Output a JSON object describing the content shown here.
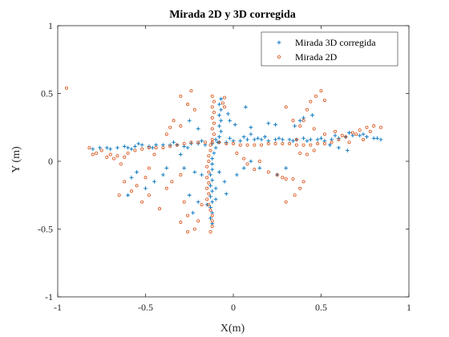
{
  "chart_data": {
    "type": "scatter",
    "title": "Mirada 2D y 3D corregida",
    "xlabel": "X(m)",
    "ylabel": "Y (m)",
    "xlim": [
      -1,
      1
    ],
    "ylim": [
      -1,
      1
    ],
    "x_ticks": [
      -1,
      -0.5,
      0,
      0.5,
      1
    ],
    "x_tick_labels": [
      "-1",
      "-0.5",
      "0",
      "0.5",
      "1"
    ],
    "y_ticks": [
      -1,
      -0.5,
      0,
      0.5,
      1
    ],
    "y_tick_labels": [
      "-1",
      "-0.5",
      "0",
      "0.5",
      "1"
    ],
    "grid": false,
    "legend_position": "top-right",
    "series": [
      {
        "name": "Mirada 3D corregida",
        "marker": "plus",
        "color": "#0072BD",
        "points": [
          [
            -0.8,
            0.09
          ],
          [
            -0.76,
            0.1
          ],
          [
            -0.72,
            0.1
          ],
          [
            -0.7,
            0.09
          ],
          [
            -0.66,
            0.1
          ],
          [
            -0.62,
            0.11
          ],
          [
            -0.6,
            0.1
          ],
          [
            -0.56,
            0.11
          ],
          [
            -0.52,
            0.12
          ],
          [
            -0.48,
            0.11
          ],
          [
            -0.44,
            0.12
          ],
          [
            -0.4,
            0.12
          ],
          [
            -0.36,
            0.12
          ],
          [
            -0.32,
            0.12
          ],
          [
            -0.28,
            0.11
          ],
          [
            -0.24,
            0.13
          ],
          [
            -0.2,
            0.13
          ],
          [
            -0.16,
            0.12
          ],
          [
            -0.12,
            0.13
          ],
          [
            -0.08,
            0.14
          ],
          [
            -0.04,
            0.14
          ],
          [
            0.0,
            0.15
          ],
          [
            0.04,
            0.15
          ],
          [
            0.08,
            0.16
          ],
          [
            0.12,
            0.16
          ],
          [
            0.16,
            0.16
          ],
          [
            0.2,
            0.15
          ],
          [
            0.24,
            0.16
          ],
          [
            0.28,
            0.16
          ],
          [
            0.32,
            0.16
          ],
          [
            0.36,
            0.16
          ],
          [
            0.4,
            0.17
          ],
          [
            0.44,
            0.16
          ],
          [
            0.48,
            0.16
          ],
          [
            0.52,
            0.15
          ],
          [
            0.56,
            0.16
          ],
          [
            0.6,
            0.17
          ],
          [
            0.64,
            0.18
          ],
          [
            0.68,
            0.19
          ],
          [
            0.72,
            0.19
          ],
          [
            0.76,
            0.18
          ],
          [
            0.8,
            0.17
          ],
          [
            0.84,
            0.16
          ],
          [
            -0.58,
            0.09
          ],
          [
            -0.54,
            0.13
          ],
          [
            -0.46,
            0.1
          ],
          [
            -0.34,
            0.14
          ],
          [
            -0.26,
            0.1
          ],
          [
            -0.18,
            0.15
          ],
          [
            -0.1,
            0.16
          ],
          [
            -0.02,
            0.17
          ],
          [
            0.06,
            0.18
          ],
          [
            0.1,
            0.2
          ],
          [
            0.14,
            0.17
          ],
          [
            0.18,
            0.18
          ],
          [
            0.26,
            0.17
          ],
          [
            0.34,
            0.15
          ],
          [
            0.42,
            0.15
          ],
          [
            0.5,
            0.17
          ],
          [
            0.58,
            0.19
          ],
          [
            0.66,
            0.21
          ],
          [
            0.74,
            0.2
          ],
          [
            0.82,
            0.17
          ],
          [
            -0.07,
            0.46
          ],
          [
            -0.08,
            0.42
          ],
          [
            -0.07,
            0.38
          ],
          [
            -0.08,
            0.34
          ],
          [
            -0.07,
            0.3
          ],
          [
            -0.08,
            0.26
          ],
          [
            -0.07,
            0.22
          ],
          [
            -0.08,
            0.18
          ],
          [
            -0.09,
            0.14
          ],
          [
            -0.1,
            0.1
          ],
          [
            -0.11,
            0.06
          ],
          [
            -0.12,
            0.02
          ],
          [
            -0.12,
            -0.02
          ],
          [
            -0.12,
            -0.06
          ],
          [
            -0.13,
            -0.1
          ],
          [
            -0.12,
            -0.14
          ],
          [
            -0.13,
            -0.18
          ],
          [
            -0.12,
            -0.22
          ],
          [
            -0.13,
            -0.26
          ],
          [
            -0.12,
            -0.3
          ],
          [
            -0.13,
            -0.34
          ],
          [
            -0.12,
            -0.38
          ],
          [
            -0.13,
            -0.42
          ],
          [
            -0.12,
            -0.46
          ],
          [
            -0.03,
            0.35
          ],
          [
            -0.02,
            0.3
          ],
          [
            0.01,
            0.27
          ],
          [
            0.07,
            0.4
          ],
          [
            0.1,
            0.25
          ],
          [
            0.2,
            0.28
          ],
          [
            0.24,
            0.27
          ],
          [
            -0.25,
            0.3
          ],
          [
            -0.2,
            0.24
          ],
          [
            -0.3,
            0.05
          ],
          [
            -0.28,
            -0.05
          ],
          [
            -0.22,
            -0.08
          ],
          [
            -0.18,
            -0.1
          ],
          [
            -0.08,
            -0.08
          ],
          [
            -0.05,
            -0.15
          ],
          [
            -0.1,
            -0.2
          ],
          [
            -0.04,
            -0.24
          ],
          [
            -0.1,
            -0.28
          ],
          [
            -0.15,
            -0.32
          ],
          [
            -0.2,
            -0.3
          ],
          [
            -0.23,
            -0.38
          ],
          [
            -0.25,
            -0.25
          ],
          [
            -0.38,
            -0.05
          ],
          [
            -0.4,
            -0.1
          ],
          [
            -0.45,
            -0.15
          ],
          [
            -0.5,
            -0.2
          ],
          [
            -0.55,
            -0.08
          ],
          [
            -0.58,
            -0.12
          ],
          [
            -0.6,
            -0.25
          ],
          [
            0.02,
            -0.1
          ],
          [
            0.06,
            -0.05
          ],
          [
            0.1,
            0.0
          ],
          [
            0.15,
            -0.05
          ],
          [
            0.25,
            -0.1
          ],
          [
            0.3,
            -0.05
          ],
          [
            0.35,
            0.26
          ],
          [
            0.38,
            0.3
          ],
          [
            0.4,
            0.32
          ],
          [
            0.45,
            0.34
          ],
          [
            0.55,
            0.12
          ],
          [
            0.6,
            0.1
          ],
          [
            0.65,
            0.08
          ]
        ]
      },
      {
        "name": "Mirada 2D",
        "marker": "circle",
        "color": "#D95319",
        "points": [
          [
            -0.95,
            0.54
          ],
          [
            -0.82,
            0.1
          ],
          [
            -0.8,
            0.05
          ],
          [
            -0.78,
            0.06
          ],
          [
            -0.75,
            0.08
          ],
          [
            -0.72,
            0.03
          ],
          [
            -0.7,
            0.05
          ],
          [
            -0.68,
            0.02
          ],
          [
            -0.66,
            0.04
          ],
          [
            -0.64,
            -0.02
          ],
          [
            -0.62,
            0.03
          ],
          [
            -0.6,
            0.06
          ],
          [
            -0.56,
            0.08
          ],
          [
            -0.52,
            0.09
          ],
          [
            -0.48,
            0.1
          ],
          [
            -0.44,
            0.1
          ],
          [
            -0.4,
            0.1
          ],
          [
            -0.36,
            0.11
          ],
          [
            -0.32,
            0.12
          ],
          [
            -0.28,
            0.13
          ],
          [
            -0.24,
            0.14
          ],
          [
            -0.2,
            0.14
          ],
          [
            -0.16,
            0.14
          ],
          [
            -0.12,
            0.14
          ],
          [
            -0.08,
            0.14
          ],
          [
            -0.04,
            0.13
          ],
          [
            0.0,
            0.13
          ],
          [
            0.04,
            0.12
          ],
          [
            0.08,
            0.12
          ],
          [
            0.12,
            0.12
          ],
          [
            0.16,
            0.12
          ],
          [
            0.2,
            0.13
          ],
          [
            0.24,
            0.13
          ],
          [
            0.28,
            0.13
          ],
          [
            0.32,
            0.13
          ],
          [
            0.36,
            0.12
          ],
          [
            0.4,
            0.12
          ],
          [
            0.44,
            0.12
          ],
          [
            0.48,
            0.13
          ],
          [
            0.52,
            0.13
          ],
          [
            0.56,
            0.14
          ],
          [
            0.6,
            0.16
          ],
          [
            0.64,
            0.18
          ],
          [
            0.68,
            0.21
          ],
          [
            0.72,
            0.23
          ],
          [
            0.76,
            0.25
          ],
          [
            0.8,
            0.26
          ],
          [
            0.84,
            0.25
          ],
          [
            0.46,
            0.24
          ],
          [
            0.52,
            0.2
          ],
          [
            0.58,
            0.22
          ],
          [
            0.62,
            0.19
          ],
          [
            0.66,
            0.14
          ],
          [
            0.7,
            0.2
          ],
          [
            0.74,
            0.16
          ],
          [
            0.78,
            0.22
          ],
          [
            -0.12,
            0.48
          ],
          [
            -0.11,
            0.44
          ],
          [
            -0.12,
            0.4
          ],
          [
            -0.11,
            0.36
          ],
          [
            -0.12,
            0.32
          ],
          [
            -0.11,
            0.28
          ],
          [
            -0.12,
            0.24
          ],
          [
            -0.11,
            0.2
          ],
          [
            -0.12,
            0.16
          ],
          [
            -0.13,
            0.12
          ],
          [
            -0.13,
            0.08
          ],
          [
            -0.14,
            0.04
          ],
          [
            -0.14,
            0.0
          ],
          [
            -0.15,
            -0.04
          ],
          [
            -0.14,
            -0.08
          ],
          [
            -0.15,
            -0.12
          ],
          [
            -0.14,
            -0.16
          ],
          [
            -0.15,
            -0.2
          ],
          [
            -0.14,
            -0.24
          ],
          [
            -0.15,
            -0.28
          ],
          [
            -0.14,
            -0.32
          ],
          [
            -0.13,
            -0.36
          ],
          [
            -0.12,
            -0.4
          ],
          [
            -0.12,
            -0.44
          ],
          [
            -0.12,
            -0.48
          ],
          [
            -0.13,
            -0.52
          ],
          [
            -0.05,
            0.47
          ],
          [
            -0.06,
            0.43
          ],
          [
            -0.05,
            0.4
          ],
          [
            -0.3,
            0.48
          ],
          [
            -0.24,
            0.52
          ],
          [
            -0.26,
            0.42
          ],
          [
            -0.22,
            0.38
          ],
          [
            -0.34,
            0.3
          ],
          [
            -0.36,
            0.25
          ],
          [
            -0.38,
            0.2
          ],
          [
            -0.3,
            0.26
          ],
          [
            -0.45,
            0.05
          ],
          [
            -0.48,
            -0.05
          ],
          [
            -0.5,
            -0.12
          ],
          [
            -0.55,
            -0.18
          ],
          [
            -0.58,
            -0.22
          ],
          [
            -0.62,
            -0.15
          ],
          [
            -0.65,
            -0.25
          ],
          [
            -0.52,
            -0.3
          ],
          [
            -0.48,
            -0.25
          ],
          [
            -0.42,
            -0.35
          ],
          [
            -0.38,
            -0.2
          ],
          [
            -0.35,
            -0.15
          ],
          [
            -0.3,
            -0.1
          ],
          [
            -0.28,
            -0.3
          ],
          [
            -0.26,
            -0.4
          ],
          [
            -0.3,
            -0.45
          ],
          [
            -0.26,
            -0.52
          ],
          [
            -0.22,
            -0.5
          ],
          [
            -0.2,
            -0.44
          ],
          [
            -0.18,
            -0.32
          ],
          [
            0.02,
            0.06
          ],
          [
            0.06,
            0.02
          ],
          [
            0.08,
            -0.02
          ],
          [
            0.12,
            -0.06
          ],
          [
            0.15,
            0.0
          ],
          [
            0.2,
            -0.08
          ],
          [
            0.25,
            -0.1
          ],
          [
            0.28,
            -0.12
          ],
          [
            0.3,
            -0.13
          ],
          [
            0.34,
            -0.13
          ],
          [
            0.3,
            -0.3
          ],
          [
            0.35,
            -0.25
          ],
          [
            0.38,
            -0.2
          ],
          [
            0.4,
            -0.15
          ],
          [
            0.3,
            0.4
          ],
          [
            0.34,
            0.3
          ],
          [
            0.38,
            0.26
          ],
          [
            0.4,
            0.3
          ],
          [
            0.42,
            0.38
          ],
          [
            0.44,
            0.44
          ],
          [
            0.47,
            0.48
          ],
          [
            0.5,
            0.52
          ],
          [
            0.52,
            0.45
          ],
          [
            0.36,
            0.16
          ],
          [
            0.38,
            0.06
          ],
          [
            0.42,
            0.05
          ],
          [
            0.46,
            0.08
          ]
        ]
      }
    ]
  }
}
